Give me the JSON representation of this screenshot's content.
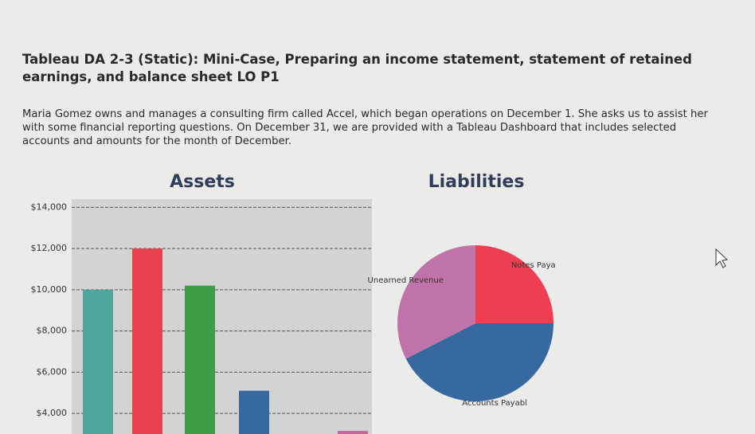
{
  "header": {
    "title": "Tableau DA 2-3 (Static): Mini-Case, Preparing an income statement, statement of retained earnings, and balance sheet LO P1"
  },
  "paragraph": "Maria Gomez owns and manages a consulting firm called Accel, which began operations on December 1. She asks us to assist her with some financial reporting questions. On December 31, we are provided with a Tableau Dashboard that includes selected accounts and amounts for the month of December.",
  "chart_data": [
    {
      "type": "bar",
      "title": "Assets",
      "categories": [
        null,
        null,
        null,
        null,
        null
      ],
      "values": [
        10000,
        12000,
        10200,
        5100,
        3150
      ],
      "colors": [
        "#4fa69d",
        "#e8404f",
        "#3e9e45",
        "#3569a0",
        "#c0689a"
      ],
      "ylim": [
        3000,
        14400
      ],
      "yticks": [
        {
          "value": 4000,
          "label": "$4,000"
        },
        {
          "value": 6000,
          "label": "$6,000"
        },
        {
          "value": 8000,
          "label": "$8,000"
        },
        {
          "value": 10000,
          "label": "$10,000"
        },
        {
          "value": 12000,
          "label": "$12,000"
        },
        {
          "value": 14000,
          "label": "$14,000"
        }
      ],
      "grid": true
    },
    {
      "type": "pie",
      "title": "Liabilities",
      "categories": [
        "Notes Paya",
        "Accounts Payabl",
        "Unearned Revenue"
      ],
      "values": [
        25,
        42.5,
        32.5
      ],
      "colors": [
        "#ee3f52",
        "#3569a0",
        "#c073a8"
      ]
    }
  ]
}
